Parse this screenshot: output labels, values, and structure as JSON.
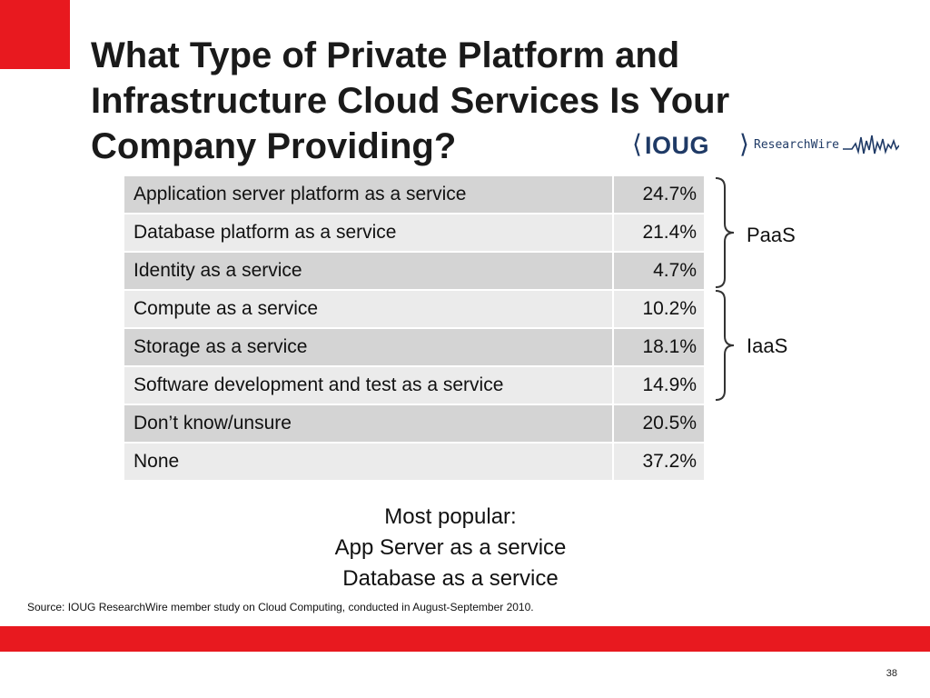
{
  "slide": {
    "title_lines": [
      "What Type of Private Platform and",
      "Infrastructure Cloud Services Is Your",
      "Company Providing?"
    ],
    "page_number": "38",
    "accent_color": "#e8191f"
  },
  "logo": {
    "mark": "IOUG",
    "sub": "ResearchWire",
    "color": "#1f3a66"
  },
  "table": {
    "rows": [
      {
        "label": "Application server platform as a service",
        "value": "24.7%"
      },
      {
        "label": "Database platform as a service",
        "value": "21.4%"
      },
      {
        "label": "Identity as a service",
        "value": "4.7%"
      },
      {
        "label": "Compute as a service",
        "value": "10.2%"
      },
      {
        "label": "Storage as a service",
        "value": "18.1%"
      },
      {
        "label": "Software development and test as a service",
        "value": "14.9%"
      },
      {
        "label": "Don’t know/unsure",
        "value": "20.5%"
      },
      {
        "label": "None",
        "value": "37.2%"
      }
    ]
  },
  "groups": {
    "paas": "PaaS",
    "iaas": "IaaS"
  },
  "popular": {
    "lines": [
      "Most popular:",
      "App Server as a service",
      "Database as a service"
    ]
  },
  "source": "Source: IOUG ResearchWire member study on Cloud Computing, conducted in August-September 2010."
}
